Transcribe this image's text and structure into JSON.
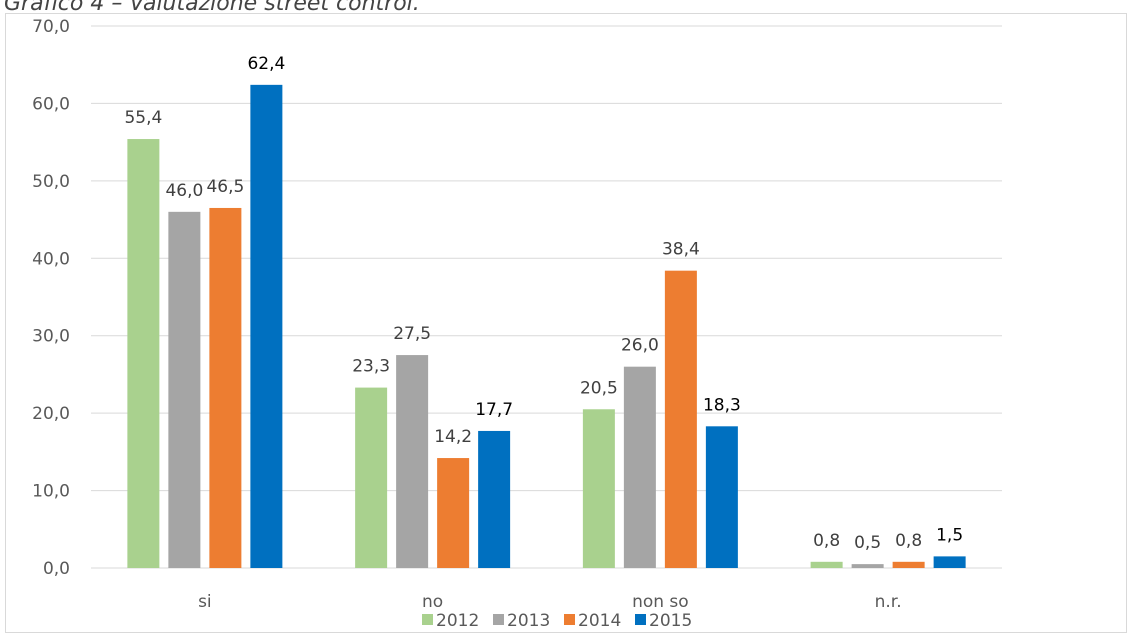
{
  "chart_data": {
    "type": "bar",
    "title": "Grafico 4 – Valutazione street control.",
    "categories": [
      "si",
      "no",
      "non so",
      "n.r."
    ],
    "series": [
      {
        "name": "2012",
        "color": "#a9d18e",
        "values": [
          55.4,
          23.3,
          20.5,
          0.8
        ],
        "labels": [
          "55,4",
          "23,3",
          "20,5",
          "0,8"
        ]
      },
      {
        "name": "2013",
        "color": "#a5a5a5",
        "values": [
          46.0,
          27.5,
          26.0,
          0.5
        ],
        "labels": [
          "46,0",
          "27,5",
          "26,0",
          "0,5"
        ]
      },
      {
        "name": "2014",
        "color": "#ed7d31",
        "values": [
          46.5,
          14.2,
          38.4,
          0.8
        ],
        "labels": [
          "46,5",
          "14,2",
          "38,4",
          "0,8"
        ]
      },
      {
        "name": "2015",
        "color": "#0070c0",
        "values": [
          62.4,
          17.7,
          18.3,
          1.5
        ],
        "labels": [
          "62,4",
          "17,7",
          "18,3",
          "1,5"
        ]
      }
    ],
    "ylim": [
      0,
      70
    ],
    "yticks": [
      "0,0",
      "10,0",
      "20,0",
      "30,0",
      "40,0",
      "50,0",
      "60,0",
      "70,0"
    ],
    "grid": true,
    "legend": "bottom",
    "gridline_color": "#d9d9d9",
    "label_colors": {
      "default": "#404040",
      "latest_series": "#000000"
    }
  }
}
